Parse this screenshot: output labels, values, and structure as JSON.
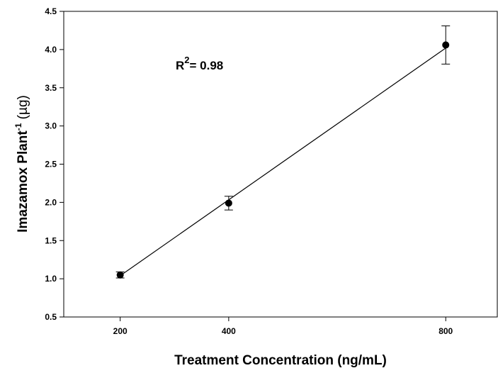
{
  "chart_data": {
    "type": "scatter",
    "x_label": "Treatment Concentration (ng/mL)",
    "y_label": {
      "text": "Imazamox  Plant",
      "superscript": "-1",
      "suffix": " (µg)"
    },
    "annotation": {
      "text": "R",
      "superscript": "2",
      "suffix": "= 0.98"
    },
    "xlim": [
      96,
      895
    ],
    "ylim": [
      0.5,
      4.5
    ],
    "xticks": [
      200,
      400,
      800
    ],
    "yticks": [
      0.5,
      {
        "value": 1,
        "label": "1.0"
      },
      1.5,
      {
        "value": 2,
        "label": "2.0"
      },
      2.5,
      {
        "value": 3,
        "label": "3.0"
      },
      3.5,
      {
        "value": 4,
        "label": "4.0"
      },
      4.5
    ],
    "series": [
      {
        "x": [
          200,
          400,
          800
        ],
        "values": [
          1.05,
          1.99,
          4.06
        ],
        "errors": [
          0.04,
          0.09,
          0.25
        ],
        "color": "#000000"
      }
    ],
    "fit": {
      "x": [
        200,
        800
      ],
      "values": [
        1.04,
        4.02
      ],
      "color": "#000000"
    }
  }
}
